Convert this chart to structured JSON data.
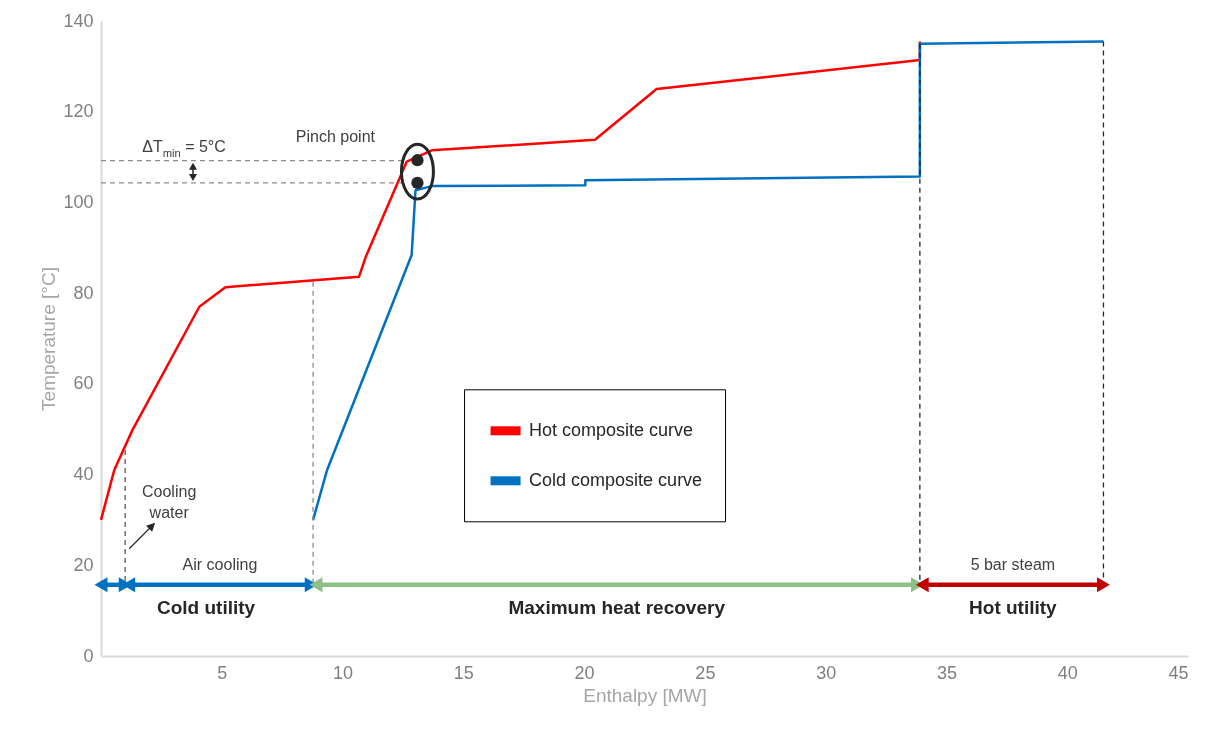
{
  "chart_data": {
    "type": "line",
    "xlabel": "Enthalpy [MW]",
    "ylabel": "Temperature [°C]",
    "xlim": [
      0,
      45
    ],
    "xticks": [
      5,
      10,
      15,
      20,
      25,
      30,
      35,
      40,
      45
    ],
    "ylim": [
      0,
      140
    ],
    "yticks": [
      0,
      20,
      40,
      60,
      80,
      100,
      120,
      140
    ],
    "grid": false,
    "legend": "center",
    "series": [
      {
        "name": "Hot composite curve",
        "color": "#ff0000",
        "x": [
          0,
          0.55,
          1.3,
          4.07,
          5.15,
          10.68,
          10.96,
          12.66,
          13.7,
          20.45,
          23,
          33.9,
          33.9
        ],
        "values": [
          30,
          41,
          49.8,
          77,
          81.3,
          83.6,
          88,
          109,
          111.5,
          113.8,
          125,
          131.4,
          135.5
        ]
      },
      {
        "name": "Cold composite curve",
        "color": "#0070c0",
        "x": [
          8.78,
          9.36,
          12.86,
          13.02,
          13.7,
          20.05,
          20.05,
          33.9,
          33.9,
          41.5
        ],
        "values": [
          30,
          41,
          88.4,
          102.7,
          103.6,
          103.8,
          104.9,
          105.7,
          135,
          135.5
        ]
      },
      {
        "type": "line",
        "line_style": "dashed",
        "color": "#8c8c8c",
        "x": [
          0,
          12.6
        ],
        "values": [
          109.2,
          109.2
        ]
      },
      {
        "type": "line",
        "line_style": "dashed",
        "color": "#8c8c8c",
        "x": [
          0,
          12.6
        ],
        "values": [
          104.3,
          104.3
        ]
      },
      {
        "type": "line",
        "line_style": "dashed",
        "color": "#595959",
        "x": [
          1,
          1
        ],
        "values": [
          45.4,
          15.7
        ]
      },
      {
        "type": "line",
        "line_style": "dashed",
        "color": "#8c8c8c",
        "x": [
          8.78,
          8.78
        ],
        "values": [
          82.5,
          15.7
        ]
      },
      {
        "type": "line",
        "line_style": "dashed",
        "color": "#262626",
        "x": [
          33.9,
          33.9
        ],
        "values": [
          135,
          15.7
        ]
      },
      {
        "type": "line",
        "line_style": "dashed",
        "color": "#262626",
        "x": [
          41.5,
          41.5
        ],
        "values": [
          135.5,
          15.7
        ]
      },
      {
        "type": "line",
        "marker": "triangle",
        "color": "#0070c0",
        "x": [
          0,
          1
        ],
        "values": [
          15.7,
          15.7
        ]
      },
      {
        "type": "line",
        "marker": "triangle",
        "color": "#0070c0",
        "x": [
          1.15,
          8.7
        ],
        "values": [
          15.7,
          15.7
        ]
      },
      {
        "type": "line",
        "marker": "triangle",
        "color": "#8cc084",
        "x": [
          8.9,
          33.8
        ],
        "values": [
          15.7,
          15.7
        ]
      },
      {
        "type": "line",
        "marker": "triangle",
        "color": "#c00000",
        "x": [
          34.0,
          41.5
        ],
        "values": [
          15.7,
          15.7
        ]
      },
      {
        "type": "scatter",
        "marker": "circle",
        "color": "#262626",
        "x": [
          13.1,
          13.1
        ],
        "values": [
          109.3,
          104.3
        ]
      }
    ],
    "annotations": [
      "ΔT$_{min}$ = 5°C",
      "Pinch point",
      "Cooling water",
      "Air cooling",
      "Cold utility",
      "Maximum heat recovery",
      "5 bar steam",
      "Hot utility"
    ]
  }
}
